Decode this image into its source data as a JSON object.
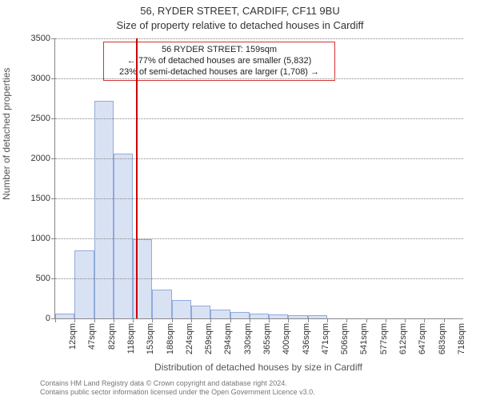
{
  "title_line1": "56, RYDER STREET, CARDIFF, CF11 9BU",
  "title_line2": "Size of property relative to detached houses in Cardiff",
  "ylabel": "Number of detached properties",
  "xlabel": "Distribution of detached houses by size in Cardiff",
  "chart": {
    "type": "histogram",
    "ylim": [
      0,
      3500
    ],
    "ytick_step": 500,
    "background_color": "#ffffff",
    "grid_color": "#888888",
    "grid_style": "dotted",
    "axis_color": "#888888",
    "bar_fill": "#d9e2f3",
    "bar_border": "#8faadc",
    "bar_width_ratio": 1.0,
    "marker_line_color": "#cc0000",
    "marker_line_width": 2,
    "marker_x_value": 159,
    "fontsize_title": 13,
    "fontsize_axis_label": 12,
    "fontsize_tick": 11,
    "categories": [
      "12sqm",
      "47sqm",
      "82sqm",
      "118sqm",
      "153sqm",
      "188sqm",
      "224sqm",
      "259sqm",
      "294sqm",
      "330sqm",
      "365sqm",
      "400sqm",
      "436sqm",
      "471sqm",
      "506sqm",
      "541sqm",
      "577sqm",
      "612sqm",
      "647sqm",
      "683sqm",
      "718sqm"
    ],
    "values": [
      60,
      850,
      2720,
      2060,
      990,
      360,
      230,
      160,
      110,
      85,
      60,
      50,
      40,
      40,
      0,
      0,
      0,
      0,
      0,
      0,
      0
    ]
  },
  "annotation": {
    "line1": "56 RYDER STREET: 159sqm",
    "line2": "← 77% of detached houses are smaller (5,832)",
    "line3": "23% of semi-detached houses are larger (1,708) →",
    "border_color": "#d33333",
    "background_color": "#ffffff",
    "fontsize": 11
  },
  "footer_line1": "Contains HM Land Registry data © Crown copyright and database right 2024.",
  "footer_line2": "Contains public sector information licensed under the Open Government Licence v3.0."
}
